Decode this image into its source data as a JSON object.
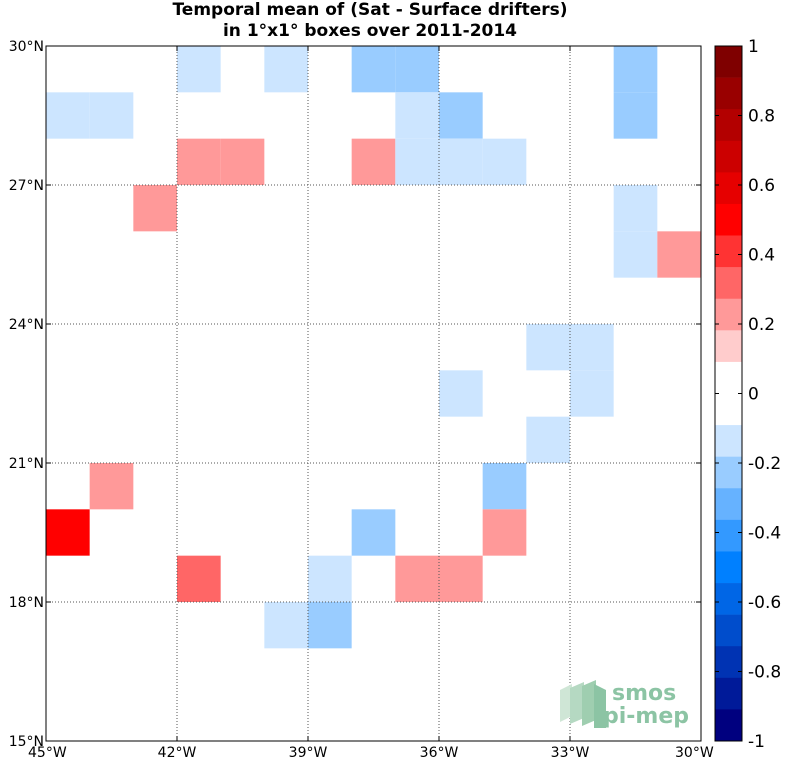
{
  "chart_data": {
    "type": "heatmap",
    "title": "Temporal mean of (Sat - Surface drifters)",
    "subtitle": "in 1°x1° boxes over 2011-2014",
    "xlabel": "",
    "ylabel": "",
    "xlim": [
      -45,
      -30
    ],
    "ylim": [
      15,
      30
    ],
    "x_tick_values": [
      -45,
      -42,
      -39,
      -36,
      -33,
      -30
    ],
    "x_tick_labels": [
      "45°W",
      "42°W",
      "39°W",
      "36°W",
      "33°W",
      "30°W"
    ],
    "y_tick_values": [
      15,
      18,
      21,
      24,
      27,
      30
    ],
    "y_tick_labels": [
      "15°N",
      "18°N",
      "21°N",
      "24°N",
      "27°N",
      "30°N"
    ],
    "grid": true,
    "colorbar": {
      "min": -1,
      "max": 1,
      "step": 0.1,
      "tick_values": [
        1,
        0.8,
        0.6,
        0.4,
        0.2,
        0,
        -0.2,
        -0.4,
        -0.6,
        -0.8,
        -1
      ],
      "tick_labels": [
        "1",
        "0.8",
        "0.6",
        "0.4",
        "0.2",
        "0",
        "-0.2",
        "-0.4",
        "-0.6",
        "-0.8",
        "-1"
      ],
      "colors_top_to_bottom": [
        "#7f0000",
        "#990000",
        "#b30000",
        "#cc0000",
        "#e60000",
        "#ff0000",
        "#ff3333",
        "#ff6666",
        "#ff9999",
        "#ffcccc",
        "#ffffff",
        "#ffffff",
        "#cce5ff",
        "#99ccff",
        "#66b2ff",
        "#3399ff",
        "#0080ff",
        "#0066e6",
        "#004dcc",
        "#0033b3",
        "#001a99",
        "#00007f"
      ]
    },
    "cells": [
      {
        "lon": -45,
        "lat": 28,
        "value": -0.15
      },
      {
        "lon": -44,
        "lat": 28,
        "value": -0.15
      },
      {
        "lon": -45,
        "lat": 19,
        "value": 0.45
      },
      {
        "lon": -44,
        "lat": 20,
        "value": 0.15
      },
      {
        "lon": -43,
        "lat": 26,
        "value": 0.15
      },
      {
        "lon": -42,
        "lat": 29,
        "value": -0.15
      },
      {
        "lon": -42,
        "lat": 27,
        "value": 0.15
      },
      {
        "lon": -41,
        "lat": 27,
        "value": 0.15
      },
      {
        "lon": -42,
        "lat": 18,
        "value": 0.25
      },
      {
        "lon": -40,
        "lat": 29,
        "value": -0.15
      },
      {
        "lon": -40,
        "lat": 17,
        "value": -0.15
      },
      {
        "lon": -39,
        "lat": 18,
        "value": -0.15
      },
      {
        "lon": -39,
        "lat": 17,
        "value": -0.25
      },
      {
        "lon": -38,
        "lat": 29,
        "value": -0.25
      },
      {
        "lon": -37,
        "lat": 29,
        "value": -0.25
      },
      {
        "lon": -38,
        "lat": 27,
        "value": 0.15
      },
      {
        "lon": -38,
        "lat": 19,
        "value": -0.25
      },
      {
        "lon": -37,
        "lat": 28,
        "value": -0.15
      },
      {
        "lon": -37,
        "lat": 27,
        "value": -0.15
      },
      {
        "lon": -37,
        "lat": 18,
        "value": 0.15
      },
      {
        "lon": -36,
        "lat": 28,
        "value": -0.25
      },
      {
        "lon": -36,
        "lat": 27,
        "value": -0.15
      },
      {
        "lon": -35,
        "lat": 27,
        "value": -0.15
      },
      {
        "lon": -36,
        "lat": 22,
        "value": -0.15
      },
      {
        "lon": -36,
        "lat": 18,
        "value": 0.15
      },
      {
        "lon": -35,
        "lat": 20,
        "value": -0.25
      },
      {
        "lon": -35,
        "lat": 19,
        "value": 0.15
      },
      {
        "lon": -34,
        "lat": 23,
        "value": -0.15
      },
      {
        "lon": -34,
        "lat": 21,
        "value": -0.15
      },
      {
        "lon": -33,
        "lat": 23,
        "value": -0.15
      },
      {
        "lon": -33,
        "lat": 22,
        "value": -0.15
      },
      {
        "lon": -32,
        "lat": 29,
        "value": -0.25
      },
      {
        "lon": -32,
        "lat": 28,
        "value": -0.25
      },
      {
        "lon": -32,
        "lat": 26,
        "value": -0.15
      },
      {
        "lon": -32,
        "lat": 25,
        "value": -0.15
      },
      {
        "lon": -31,
        "lat": 25,
        "value": 0.15
      }
    ]
  },
  "logo": {
    "line1": "smos",
    "line2": "pi-mep"
  }
}
